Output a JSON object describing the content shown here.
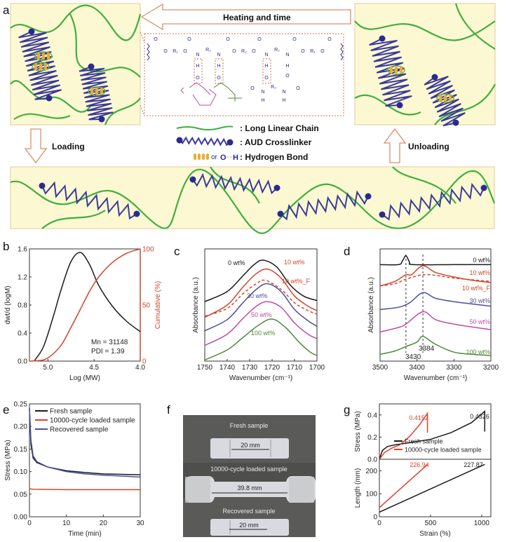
{
  "panel_labels": {
    "a": "a",
    "b": "b",
    "c": "c",
    "d": "d",
    "e": "e",
    "f": "f",
    "g": "g"
  },
  "schematic": {
    "heating_arrow_label": "Heating and time",
    "loading_label": "Loading",
    "unloading_label": "Unloading",
    "legend": {
      "long_chain": ": Long Linear Chain",
      "crosslinker": ": AUD Crosslinker",
      "or": "or",
      "hbond_o": "O",
      "hbond_h": "H",
      "hydrogen_bond": ": Hydrogen Bond"
    },
    "chem_atoms": {
      "O": "O",
      "N": "N",
      "H": "H",
      "R1": "R₁",
      "R2": "R₂",
      "R3": "R₃"
    },
    "colors": {
      "box_fill": "#fcf9d2",
      "chain": "#3fae3f",
      "crosslinker": "#3a3a9a",
      "arrow": "#d9906a",
      "hbond": "#d4704a"
    }
  },
  "photo": {
    "fresh_label": "Fresh sample",
    "fresh_length": "20 mm",
    "loaded_label": "10000-cycle loaded sample",
    "loaded_length": "39.8 mm",
    "recovered_label": "Recovered sample",
    "recovered_length": "20 mm"
  },
  "chart_data": [
    {
      "id": "b",
      "type": "line",
      "xlabel": "Log (MW)",
      "ylabel": "dwt/d (logM)",
      "y2label": "Cumulative (%)",
      "xlim": [
        5.2,
        4.0
      ],
      "ylim": [
        0,
        1.6
      ],
      "y2lim": [
        0,
        100
      ],
      "xticks": [
        "5.0",
        "4.5",
        "4.0"
      ],
      "yticks": [
        "0.0",
        "0.4",
        "0.8",
        "1.2",
        "1.6"
      ],
      "y2ticks": [
        "0",
        "50",
        "100"
      ],
      "annotations": [
        "Mn = 31148",
        "PDI = 1.39"
      ],
      "series": [
        {
          "axis": "left",
          "color": "#1a1a1a",
          "points": [
            [
              5.15,
              0
            ],
            [
              5.05,
              0.2
            ],
            [
              4.95,
              0.6
            ],
            [
              4.85,
              1.05
            ],
            [
              4.75,
              1.42
            ],
            [
              4.65,
              1.55
            ],
            [
              4.55,
              1.38
            ],
            [
              4.45,
              1.08
            ],
            [
              4.3,
              0.78
            ],
            [
              4.15,
              0.57
            ],
            [
              4.0,
              0.42
            ]
          ]
        },
        {
          "axis": "right",
          "color": "#d0452a",
          "points": [
            [
              5.2,
              0
            ],
            [
              5.05,
              1
            ],
            [
              4.95,
              6
            ],
            [
              4.85,
              15
            ],
            [
              4.75,
              30
            ],
            [
              4.65,
              46
            ],
            [
              4.55,
              62
            ],
            [
              4.45,
              75
            ],
            [
              4.3,
              88
            ],
            [
              4.15,
              96
            ],
            [
              4.0,
              100
            ]
          ]
        }
      ]
    },
    {
      "id": "c",
      "type": "line",
      "xlabel": "Wavenumber (cm⁻¹)",
      "ylabel": "Absorbance (a.u.)",
      "xlim": [
        1750,
        1700
      ],
      "ylim": [
        0,
        1
      ],
      "xticks": [
        "1750",
        "1740",
        "1730",
        "1720",
        "1710",
        "1700"
      ],
      "series": [
        {
          "name": "0 wt%",
          "color": "#1a1a1a",
          "points": [
            [
              1750,
              0.53
            ],
            [
              1740,
              0.62
            ],
            [
              1733,
              0.76
            ],
            [
              1728,
              0.86
            ],
            [
              1724,
              0.9
            ],
            [
              1718,
              0.84
            ],
            [
              1712,
              0.68
            ],
            [
              1706,
              0.58
            ],
            [
              1700,
              0.54
            ]
          ]
        },
        {
          "name": "10 wt%",
          "color": "#d0452a",
          "points": [
            [
              1750,
              0.39
            ],
            [
              1740,
              0.5
            ],
            [
              1733,
              0.66
            ],
            [
              1727,
              0.78
            ],
            [
              1722,
              0.82
            ],
            [
              1716,
              0.74
            ],
            [
              1710,
              0.58
            ],
            [
              1704,
              0.49
            ],
            [
              1700,
              0.45
            ]
          ]
        },
        {
          "name": "10 wt%_F",
          "color": "#d0452a",
          "dashed": true,
          "points": [
            [
              1750,
              0.4
            ],
            [
              1740,
              0.47
            ],
            [
              1733,
              0.6
            ],
            [
              1727,
              0.69
            ],
            [
              1723,
              0.72
            ],
            [
              1716,
              0.64
            ],
            [
              1710,
              0.52
            ],
            [
              1704,
              0.45
            ],
            [
              1700,
              0.42
            ]
          ]
        },
        {
          "name": "30 wt%",
          "color": "#4a4f9a",
          "points": [
            [
              1750,
              0.27
            ],
            [
              1740,
              0.37
            ],
            [
              1733,
              0.52
            ],
            [
              1727,
              0.64
            ],
            [
              1722,
              0.69
            ],
            [
              1716,
              0.62
            ],
            [
              1710,
              0.46
            ],
            [
              1704,
              0.36
            ],
            [
              1700,
              0.31
            ]
          ]
        },
        {
          "name": "50 wt%",
          "color": "#c04aa8",
          "points": [
            [
              1750,
              0.14
            ],
            [
              1740,
              0.24
            ],
            [
              1733,
              0.38
            ],
            [
              1727,
              0.49
            ],
            [
              1722,
              0.53
            ],
            [
              1716,
              0.48
            ],
            [
              1710,
              0.34
            ],
            [
              1704,
              0.24
            ],
            [
              1700,
              0.2
            ]
          ]
        },
        {
          "name": "100 wt%",
          "color": "#4f8a3a",
          "points": [
            [
              1750,
              0.01
            ],
            [
              1740,
              0.1
            ],
            [
              1733,
              0.21
            ],
            [
              1726,
              0.32
            ],
            [
              1720,
              0.375
            ],
            [
              1714,
              0.3
            ],
            [
              1708,
              0.17
            ],
            [
              1703,
              0.08
            ],
            [
              1700,
              0.05
            ]
          ]
        }
      ]
    },
    {
      "id": "d",
      "type": "line",
      "xlabel": "Wavenumber (cm⁻¹)",
      "ylabel": "Absorbance (a.u.)",
      "xlim": [
        3500,
        3200
      ],
      "ylim": [
        0,
        1
      ],
      "xticks": [
        "3500",
        "3400",
        "3300",
        "3200"
      ],
      "reference_lines": [
        3430,
        3384
      ],
      "annotations": [
        "3430",
        "3384"
      ],
      "series": [
        {
          "name": "0 wt%",
          "color": "#1a1a1a",
          "points": [
            [
              3500,
              0.86
            ],
            [
              3450,
              0.86
            ],
            [
              3440,
              0.89
            ],
            [
              3430,
              0.94
            ],
            [
              3420,
              0.88
            ],
            [
              3410,
              0.86
            ],
            [
              3300,
              0.86
            ],
            [
              3200,
              0.86
            ]
          ]
        },
        {
          "name": "10 wt%",
          "color": "#d0452a",
          "points": [
            [
              3500,
              0.67
            ],
            [
              3460,
              0.71
            ],
            [
              3430,
              0.77
            ],
            [
              3415,
              0.77
            ],
            [
              3384,
              0.85
            ],
            [
              3350,
              0.79
            ],
            [
              3300,
              0.75
            ],
            [
              3250,
              0.72
            ],
            [
              3200,
              0.7
            ]
          ]
        },
        {
          "name": "10 wt%_F",
          "color": "#d0452a",
          "dashed": true,
          "points": [
            [
              3500,
              0.67
            ],
            [
              3460,
              0.69
            ],
            [
              3430,
              0.73
            ],
            [
              3384,
              0.77
            ],
            [
              3340,
              0.76
            ],
            [
              3300,
              0.74
            ],
            [
              3200,
              0.71
            ]
          ]
        },
        {
          "name": "30 wt%",
          "color": "#4a4f9a",
          "points": [
            [
              3500,
              0.46
            ],
            [
              3450,
              0.48
            ],
            [
              3420,
              0.52
            ],
            [
              3384,
              0.61
            ],
            [
              3350,
              0.56
            ],
            [
              3300,
              0.53
            ],
            [
              3200,
              0.49
            ]
          ]
        },
        {
          "name": "50 wt%",
          "color": "#c04aa8",
          "points": [
            [
              3500,
              0.26
            ],
            [
              3450,
              0.3
            ],
            [
              3430,
              0.33
            ],
            [
              3384,
              0.44
            ],
            [
              3350,
              0.37
            ],
            [
              3300,
              0.33
            ],
            [
              3200,
              0.28
            ]
          ]
        },
        {
          "name": "100 wt%",
          "color": "#4f8a3a",
          "points": [
            [
              3500,
              0.06
            ],
            [
              3460,
              0.09
            ],
            [
              3430,
              0.13
            ],
            [
              3400,
              0.17
            ],
            [
              3384,
              0.22
            ],
            [
              3350,
              0.15
            ],
            [
              3300,
              0.08
            ],
            [
              3250,
              0.06
            ],
            [
              3200,
              0.05
            ]
          ]
        }
      ]
    },
    {
      "id": "e",
      "type": "line",
      "xlabel": "Time (min)",
      "ylabel": "Stress (MPa)",
      "xlim": [
        0,
        30
      ],
      "ylim": [
        0,
        0.25
      ],
      "xticks": [
        "0",
        "10",
        "20",
        "30"
      ],
      "yticks": [
        "0.00",
        "0.05",
        "0.10",
        "0.15",
        "0.20",
        "0.25"
      ],
      "legend": "top-left",
      "series": [
        {
          "name": "Fresh sample",
          "color": "#1a1a1a",
          "points": [
            [
              0,
              0.24
            ],
            [
              0.4,
              0.16
            ],
            [
              1,
              0.13
            ],
            [
              2,
              0.12
            ],
            [
              5,
              0.11
            ],
            [
              10,
              0.102
            ],
            [
              15,
              0.098
            ],
            [
              20,
              0.095
            ],
            [
              25,
              0.094
            ],
            [
              30,
              0.093
            ]
          ]
        },
        {
          "name": "10000-cycle loaded sample",
          "color": "#e0402a",
          "points": [
            [
              0,
              0.062
            ],
            [
              1,
              0.061
            ],
            [
              10,
              0.06
            ],
            [
              20,
              0.06
            ],
            [
              30,
              0.06
            ]
          ]
        },
        {
          "name": "Recovered sample",
          "color": "#4a4faa",
          "points": [
            [
              0,
              0.24
            ],
            [
              0.4,
              0.17
            ],
            [
              1,
              0.135
            ],
            [
              2,
              0.122
            ],
            [
              5,
              0.11
            ],
            [
              10,
              0.1
            ],
            [
              15,
              0.095
            ],
            [
              20,
              0.092
            ],
            [
              25,
              0.09
            ],
            [
              30,
              0.088
            ]
          ]
        }
      ]
    },
    {
      "id": "g_upper",
      "type": "line",
      "xlabel": "Strain (%)",
      "ylabel": "Stress (MPa)",
      "xlim": [
        0,
        1090
      ],
      "ylim": [
        0,
        0.5
      ],
      "yticks": [
        "0.0",
        "0.2",
        "0.4"
      ],
      "legend": "bottom-right",
      "annotations": [
        "0.4152",
        "0.4326"
      ],
      "series": [
        {
          "name": "Fresh sample",
          "color": "#1a1a1a",
          "points": [
            [
              0,
              0
            ],
            [
              30,
              0.08
            ],
            [
              80,
              0.115
            ],
            [
              150,
              0.13
            ],
            [
              300,
              0.15
            ],
            [
              500,
              0.18
            ],
            [
              700,
              0.24
            ],
            [
              900,
              0.33
            ],
            [
              1030,
              0.4326
            ],
            [
              1030,
              0.25
            ]
          ]
        },
        {
          "name": "10000-cycle loaded sample",
          "color": "#e0402a",
          "points": [
            [
              0,
              0
            ],
            [
              50,
              0.06
            ],
            [
              120,
              0.1
            ],
            [
              200,
              0.13
            ],
            [
              300,
              0.21
            ],
            [
              400,
              0.32
            ],
            [
              470,
              0.4152
            ],
            [
              470,
              0.24
            ]
          ]
        }
      ]
    },
    {
      "id": "g_lower",
      "type": "line",
      "xlabel": "Strain (%)",
      "ylabel": "Length (mm)",
      "xlim": [
        0,
        1090
      ],
      "ylim": [
        0,
        250
      ],
      "xticks": [
        "0",
        "500",
        "1000"
      ],
      "yticks": [
        "0",
        "100",
        "200"
      ],
      "annotations": [
        "226.94",
        "227.87"
      ],
      "series": [
        {
          "color": "#1a1a1a",
          "points": [
            [
              0,
              20
            ],
            [
              1030,
              227.87
            ]
          ]
        },
        {
          "color": "#e0402a",
          "points": [
            [
              0,
              40
            ],
            [
              470,
              226.94
            ]
          ]
        }
      ]
    }
  ]
}
